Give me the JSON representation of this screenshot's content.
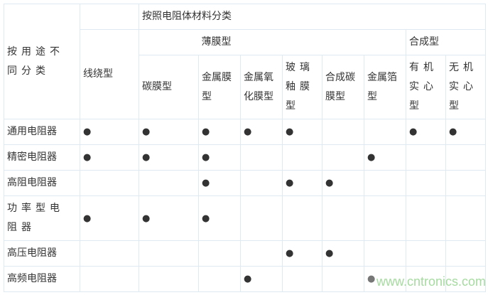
{
  "header": {
    "usage": "按用途不同分类",
    "material": "按照电阻体材料分类",
    "wire": "线绕型",
    "film": "薄膜型",
    "synthetic": "合成型",
    "columns": [
      "碳膜型",
      "金属膜型",
      "金属氧化膜型",
      "玻璃釉膜型",
      "合成碳膜型",
      "金属箔型",
      "有机实心型",
      "无机实心型"
    ]
  },
  "dot_symbol": "●",
  "rows": [
    {
      "label": "通用电阻器",
      "marks": [
        1,
        1,
        1,
        1,
        1,
        0,
        0,
        1,
        1
      ]
    },
    {
      "label": "精密电阻器",
      "marks": [
        1,
        1,
        1,
        0,
        0,
        0,
        1,
        0,
        0
      ]
    },
    {
      "label": "高阻电阻器",
      "marks": [
        0,
        0,
        1,
        0,
        1,
        1,
        0,
        0,
        0
      ]
    },
    {
      "label": "功率型电阻器",
      "marks": [
        1,
        1,
        1,
        0,
        0,
        0,
        0,
        0,
        0
      ]
    },
    {
      "label": "高压电阻器",
      "marks": [
        0,
        0,
        0,
        0,
        1,
        1,
        0,
        0,
        0
      ]
    },
    {
      "label": "高频电阻器",
      "marks": [
        0,
        0,
        0,
        1,
        0,
        0,
        1,
        0,
        0
      ]
    }
  ],
  "watermark": "www.cntronics.com"
}
